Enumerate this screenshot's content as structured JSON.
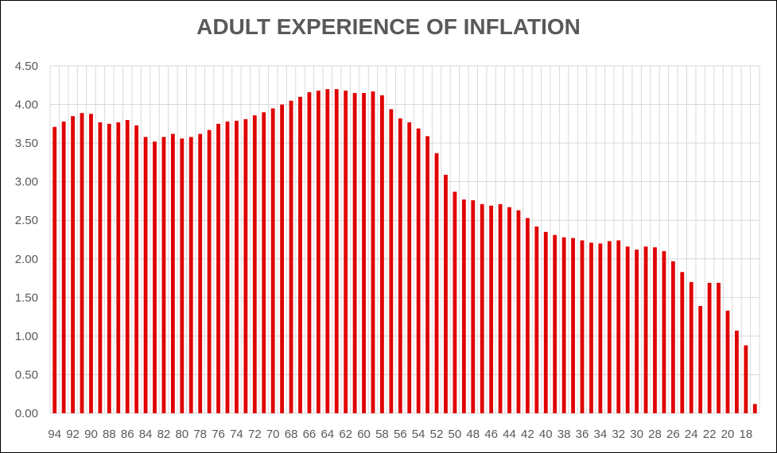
{
  "chart_data": {
    "type": "bar",
    "title": "ADULT EXPERIENCE OF INFLATION",
    "xlabel": "",
    "ylabel": "",
    "ylim": [
      0,
      4.5
    ],
    "y_ticks": [
      "0.00",
      "0.50",
      "1.00",
      "1.50",
      "2.00",
      "2.50",
      "3.00",
      "3.50",
      "4.00",
      "4.50"
    ],
    "categories": [
      "94",
      "93",
      "92",
      "91",
      "90",
      "89",
      "88",
      "87",
      "86",
      "85",
      "84",
      "83",
      "82",
      "81",
      "80",
      "79",
      "78",
      "77",
      "76",
      "75",
      "74",
      "73",
      "72",
      "71",
      "70",
      "69",
      "68",
      "67",
      "66",
      "65",
      "64",
      "63",
      "62",
      "61",
      "60",
      "59",
      "58",
      "57",
      "56",
      "55",
      "54",
      "53",
      "52",
      "51",
      "50",
      "49",
      "48",
      "47",
      "46",
      "45",
      "44",
      "43",
      "42",
      "41",
      "40",
      "39",
      "38",
      "37",
      "36",
      "35",
      "34",
      "33",
      "32",
      "31",
      "30",
      "29",
      "28",
      "27",
      "26",
      "25",
      "24",
      "23",
      "22",
      "21",
      "20",
      "19",
      "18",
      "17"
    ],
    "x_tick_labels": [
      "94",
      "92",
      "90",
      "88",
      "86",
      "84",
      "82",
      "80",
      "78",
      "76",
      "74",
      "72",
      "70",
      "68",
      "66",
      "64",
      "62",
      "60",
      "58",
      "56",
      "54",
      "52",
      "50",
      "48",
      "46",
      "44",
      "42",
      "40",
      "38",
      "36",
      "34",
      "32",
      "30",
      "28",
      "26",
      "24",
      "22",
      "20",
      "18"
    ],
    "values": [
      3.71,
      3.78,
      3.85,
      3.89,
      3.88,
      3.77,
      3.75,
      3.77,
      3.8,
      3.73,
      3.58,
      3.52,
      3.58,
      3.62,
      3.56,
      3.58,
      3.62,
      3.67,
      3.75,
      3.78,
      3.79,
      3.81,
      3.86,
      3.9,
      3.95,
      4.0,
      4.05,
      4.1,
      4.16,
      4.18,
      4.2,
      4.2,
      4.18,
      4.15,
      4.15,
      4.17,
      4.12,
      3.94,
      3.82,
      3.77,
      3.69,
      3.59,
      3.37,
      3.09,
      2.87,
      2.77,
      2.76,
      2.71,
      2.69,
      2.71,
      2.67,
      2.63,
      2.53,
      2.42,
      2.35,
      2.31,
      2.28,
      2.27,
      2.24,
      2.21,
      2.2,
      2.23,
      2.24,
      2.16,
      2.12,
      2.16,
      2.15,
      2.1,
      1.97,
      1.83,
      1.7,
      1.39,
      1.69,
      1.69,
      1.33,
      1.07,
      0.88,
      0.12
    ],
    "grid": true,
    "legend": "none",
    "bar_color": "#e00000",
    "grid_color": "#d9d9d9"
  }
}
